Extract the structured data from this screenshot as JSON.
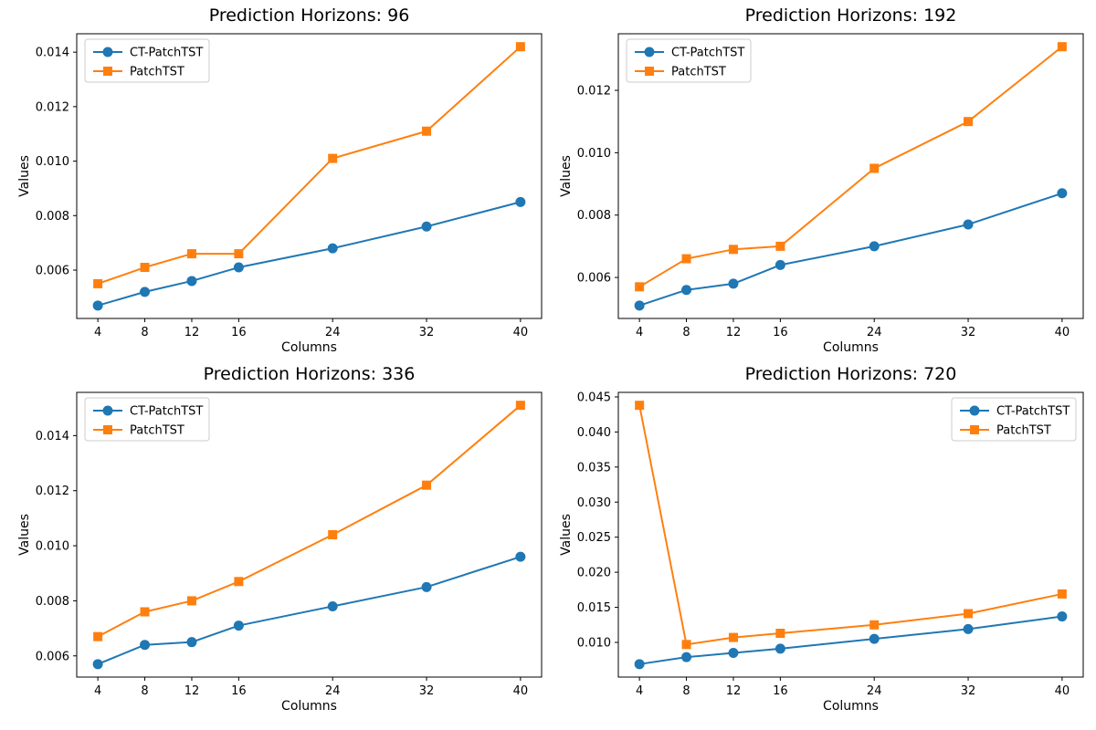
{
  "figure": {
    "background": "#ffffff",
    "text_color": "#000000",
    "spine_color": "#000000",
    "legend_border_color": "#cccccc",
    "legend_background": "#ffffff"
  },
  "chart_data": [
    {
      "type": "line",
      "title": "Prediction Horizons: 96",
      "xlabel": "Columns",
      "ylabel": "Values",
      "x": [
        4,
        8,
        12,
        16,
        24,
        32,
        40
      ],
      "xtick_labels": [
        "4",
        "8",
        "12",
        "16",
        "24",
        "32",
        "40"
      ],
      "xlim": [
        2.2,
        41.8
      ],
      "yticks": [
        0.006,
        0.008,
        0.01,
        0.012,
        0.014
      ],
      "ytick_labels": [
        "0.006",
        "0.008",
        "0.010",
        "0.012",
        "0.014"
      ],
      "ylim": [
        0.004225,
        0.014675
      ],
      "grid": false,
      "legend_position": "upper-left",
      "series": [
        {
          "name": "CT-PatchTST",
          "color": "#1f77b4",
          "marker": "circle",
          "values": [
            0.0047,
            0.0052,
            0.0056,
            0.0061,
            0.0068,
            0.0076,
            0.0085
          ]
        },
        {
          "name": "PatchTST",
          "color": "#ff7f0e",
          "marker": "square",
          "values": [
            0.0055,
            0.0061,
            0.0066,
            0.0066,
            0.0101,
            0.0111,
            0.0142
          ]
        }
      ]
    },
    {
      "type": "line",
      "title": "Prediction Horizons: 192",
      "xlabel": "Columns",
      "ylabel": "Values",
      "x": [
        4,
        8,
        12,
        16,
        24,
        32,
        40
      ],
      "xtick_labels": [
        "4",
        "8",
        "12",
        "16",
        "24",
        "32",
        "40"
      ],
      "xlim": [
        2.2,
        41.8
      ],
      "yticks": [
        0.006,
        0.008,
        0.01,
        0.012
      ],
      "ytick_labels": [
        "0.006",
        "0.008",
        "0.010",
        "0.012"
      ],
      "ylim": [
        0.004685,
        0.013815
      ],
      "grid": false,
      "legend_position": "upper-left",
      "series": [
        {
          "name": "CT-PatchTST",
          "color": "#1f77b4",
          "marker": "circle",
          "values": [
            0.0051,
            0.0056,
            0.0058,
            0.0064,
            0.007,
            0.0077,
            0.0087
          ]
        },
        {
          "name": "PatchTST",
          "color": "#ff7f0e",
          "marker": "square",
          "values": [
            0.0057,
            0.0066,
            0.0069,
            0.007,
            0.0095,
            0.011,
            0.0134
          ]
        }
      ]
    },
    {
      "type": "line",
      "title": "Prediction Horizons: 336",
      "xlabel": "Columns",
      "ylabel": "Values",
      "x": [
        4,
        8,
        12,
        16,
        24,
        32,
        40
      ],
      "xtick_labels": [
        "4",
        "8",
        "12",
        "16",
        "24",
        "32",
        "40"
      ],
      "xlim": [
        2.2,
        41.8
      ],
      "yticks": [
        0.006,
        0.008,
        0.01,
        0.012,
        0.014
      ],
      "ytick_labels": [
        "0.006",
        "0.008",
        "0.010",
        "0.012",
        "0.014"
      ],
      "ylim": [
        0.00523,
        0.01557
      ],
      "grid": false,
      "legend_position": "upper-left",
      "series": [
        {
          "name": "CT-PatchTST",
          "color": "#1f77b4",
          "marker": "circle",
          "values": [
            0.0057,
            0.0064,
            0.0065,
            0.0071,
            0.0078,
            0.0085,
            0.0096
          ]
        },
        {
          "name": "PatchTST",
          "color": "#ff7f0e",
          "marker": "square",
          "values": [
            0.0067,
            0.0076,
            0.008,
            0.0087,
            0.0104,
            0.0122,
            0.0151
          ]
        }
      ]
    },
    {
      "type": "line",
      "title": "Prediction Horizons: 720",
      "xlabel": "Columns",
      "ylabel": "Values",
      "x": [
        4,
        8,
        12,
        16,
        24,
        32,
        40
      ],
      "xtick_labels": [
        "4",
        "8",
        "12",
        "16",
        "24",
        "32",
        "40"
      ],
      "xlim": [
        2.2,
        41.8
      ],
      "yticks": [
        0.01,
        0.015,
        0.02,
        0.025,
        0.03,
        0.035,
        0.04,
        0.045
      ],
      "ytick_labels": [
        "0.010",
        "0.015",
        "0.020",
        "0.025",
        "0.030",
        "0.035",
        "0.040",
        "0.045"
      ],
      "ylim": [
        0.005055,
        0.045645
      ],
      "grid": false,
      "legend_position": "upper-right",
      "series": [
        {
          "name": "CT-PatchTST",
          "color": "#1f77b4",
          "marker": "circle",
          "values": [
            0.0069,
            0.0079,
            0.0085,
            0.0091,
            0.0105,
            0.0119,
            0.0137
          ]
        },
        {
          "name": "PatchTST",
          "color": "#ff7f0e",
          "marker": "square",
          "values": [
            0.0438,
            0.0097,
            0.0107,
            0.0113,
            0.0125,
            0.0141,
            0.0169
          ]
        }
      ]
    }
  ]
}
